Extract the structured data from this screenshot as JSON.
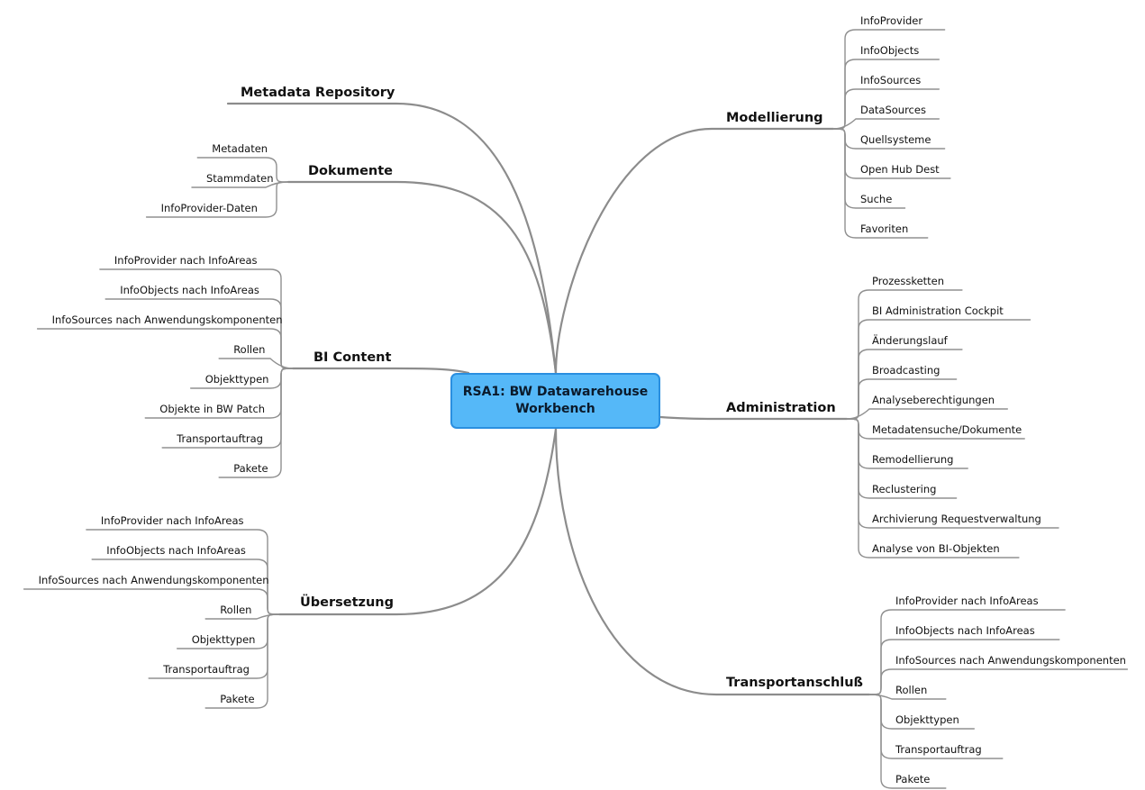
{
  "center": {
    "title": "RSA1: BW Datawarehouse\nWorkbench"
  },
  "branches": [
    {
      "id": "modellierung",
      "title": "Modellierung",
      "items": [
        "InfoProvider",
        "InfoObjects",
        "InfoSources",
        "DataSources",
        "Quellsysteme",
        "Open Hub Dest",
        "Suche",
        "Favoriten"
      ]
    },
    {
      "id": "administration",
      "title": "Administration",
      "items": [
        "Prozessketten",
        "BI Administration Cockpit",
        "Änderungslauf",
        "Broadcasting",
        "Analyseberechtigungen",
        "Metadatensuche/Dokumente",
        "Remodellierung",
        "Reclustering",
        "Archivierung Requestverwaltung",
        "Analyse von BI-Objekten"
      ]
    },
    {
      "id": "transportanschluss",
      "title": "Transportanschluß",
      "items": [
        "InfoProvider nach InfoAreas",
        "InfoObjects nach InfoAreas",
        "InfoSources nach Anwendungskomponenten",
        "Rollen",
        "Objekttypen",
        "Transportauftrag",
        "Pakete"
      ]
    },
    {
      "id": "metadata-repository",
      "title": "Metadata Repository",
      "items": []
    },
    {
      "id": "dokumente",
      "title": "Dokumente",
      "items": [
        "Metadaten",
        "Stammdaten",
        "InfoProvider-Daten"
      ]
    },
    {
      "id": "bi-content",
      "title": "BI Content",
      "items": [
        "InfoProvider nach InfoAreas",
        "InfoObjects nach InfoAreas",
        "InfoSources nach Anwendungskomponenten",
        "Rollen",
        "Objekttypen",
        "Objekte in BW Patch",
        "Transportauftrag",
        "Pakete"
      ]
    },
    {
      "id": "uebersetzung",
      "title": "Übersetzung",
      "items": [
        "InfoProvider nach InfoAreas",
        "InfoObjects nach InfoAreas",
        "InfoSources nach Anwendungskomponenten",
        "Rollen",
        "Objekttypen",
        "Transportauftrag",
        "Pakete"
      ]
    }
  ]
}
